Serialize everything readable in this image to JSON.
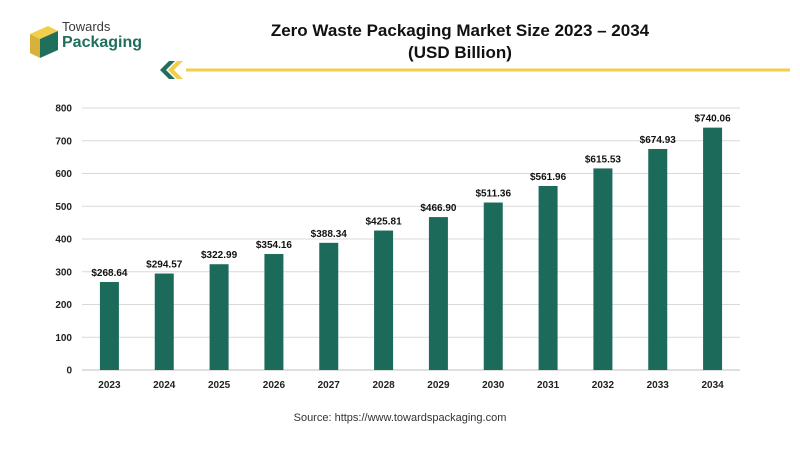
{
  "logo": {
    "line1": "Towards",
    "line2": "Packaging"
  },
  "title_line1": "Zero Waste Packaging Market Size 2023 – 2034",
  "title_line2": "(USD Billion)",
  "source": "Source: https://www.towardspackaging.com",
  "colors": {
    "bar": "#1c6b5a",
    "accent": "#f2cf4a",
    "logo_green": "#1f6f5c",
    "logo_gold": "#d8b13b"
  },
  "chart_data": {
    "type": "bar",
    "categories": [
      "2023",
      "2024",
      "2025",
      "2026",
      "2027",
      "2028",
      "2029",
      "2030",
      "2031",
      "2032",
      "2033",
      "2034"
    ],
    "values": [
      268.64,
      294.57,
      322.99,
      354.16,
      388.34,
      425.81,
      466.9,
      511.36,
      561.96,
      615.53,
      674.93,
      740.06
    ],
    "data_labels": [
      "$268.64",
      "$294.57",
      "$322.99",
      "$354.16",
      "$388.34",
      "$425.81",
      "$466.90",
      "$511.36",
      "$561.96",
      "$615.53",
      "$674.93",
      "$740.06"
    ],
    "ylim": [
      0,
      800
    ],
    "yticks": [
      0,
      100,
      200,
      300,
      400,
      500,
      600,
      700,
      800
    ],
    "grid": true,
    "xlabel": "",
    "ylabel": ""
  }
}
